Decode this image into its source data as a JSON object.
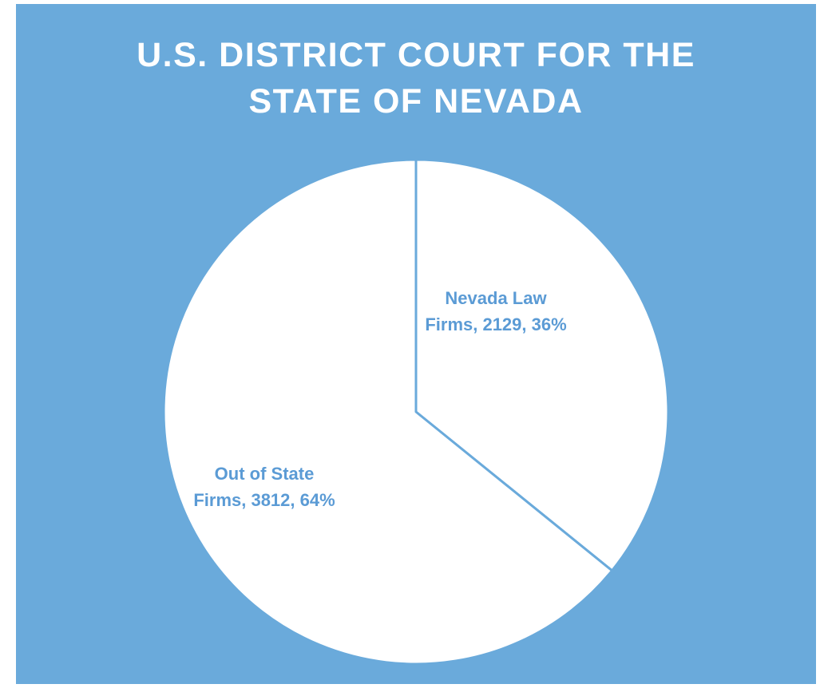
{
  "chart_data": {
    "type": "pie",
    "title": "U.S. DISTRICT COURT FOR THE STATE OF NEVADA",
    "categories": [
      "Nevada Law Firms",
      "Out of State Firms"
    ],
    "values": [
      2129,
      3812
    ],
    "value_labels": [
      "Nevada Law Firms, 2129, 36%",
      "Out of State Firms, 3812, 64%"
    ],
    "colors": [
      "#ffffff",
      "#ffffff"
    ]
  }
}
